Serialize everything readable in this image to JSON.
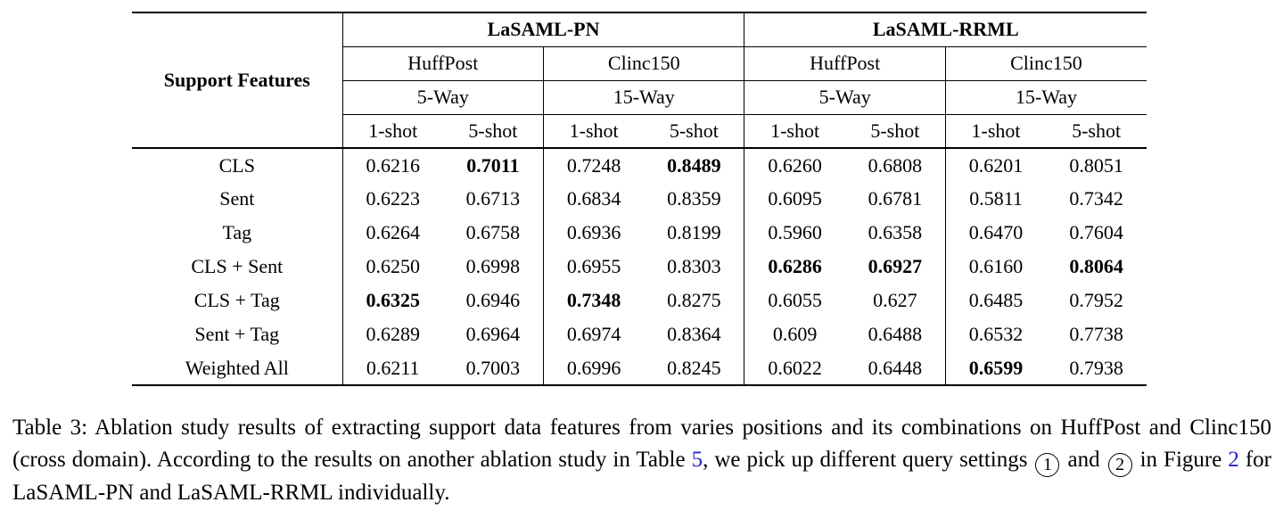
{
  "page": {
    "background": "#ffffff",
    "text_color": "#000000",
    "link_color": "#2222cc"
  },
  "table": {
    "row_header_label": "Support Features",
    "groups": [
      {
        "label": "LaSAML-PN",
        "subgroups": [
          {
            "dataset": "HuffPost",
            "way": "5-Way"
          },
          {
            "dataset": "Clinc150",
            "way": "15-Way"
          }
        ]
      },
      {
        "label": "LaSAML-RRML",
        "subgroups": [
          {
            "dataset": "HuffPost",
            "way": "5-Way"
          },
          {
            "dataset": "Clinc150",
            "way": "15-Way"
          }
        ]
      }
    ],
    "shot_labels": [
      "1-shot",
      "5-shot"
    ],
    "rows": [
      {
        "feature": "CLS",
        "values": [
          "0.6216",
          "0.7011",
          "0.7248",
          "0.8489",
          "0.6260",
          "0.6808",
          "0.6201",
          "0.8051"
        ],
        "bold": [
          false,
          true,
          false,
          true,
          false,
          false,
          false,
          false
        ]
      },
      {
        "feature": "Sent",
        "values": [
          "0.6223",
          "0.6713",
          "0.6834",
          "0.8359",
          "0.6095",
          "0.6781",
          "0.5811",
          "0.7342"
        ],
        "bold": [
          false,
          false,
          false,
          false,
          false,
          false,
          false,
          false
        ]
      },
      {
        "feature": "Tag",
        "values": [
          "0.6264",
          "0.6758",
          "0.6936",
          "0.8199",
          "0.5960",
          "0.6358",
          "0.6470",
          "0.7604"
        ],
        "bold": [
          false,
          false,
          false,
          false,
          false,
          false,
          false,
          false
        ]
      },
      {
        "feature": "CLS + Sent",
        "values": [
          "0.6250",
          "0.6998",
          "0.6955",
          "0.8303",
          "0.6286",
          "0.6927",
          "0.6160",
          "0.8064"
        ],
        "bold": [
          false,
          false,
          false,
          false,
          true,
          true,
          false,
          true
        ]
      },
      {
        "feature": "CLS + Tag",
        "values": [
          "0.6325",
          "0.6946",
          "0.7348",
          "0.8275",
          "0.6055",
          "0.627",
          "0.6485",
          "0.7952"
        ],
        "bold": [
          true,
          false,
          true,
          false,
          false,
          false,
          false,
          false
        ]
      },
      {
        "feature": "Sent + Tag",
        "values": [
          "0.6289",
          "0.6964",
          "0.6974",
          "0.8364",
          "0.609",
          "0.6488",
          "0.6532",
          "0.7738"
        ],
        "bold": [
          false,
          false,
          false,
          false,
          false,
          false,
          false,
          false
        ]
      },
      {
        "feature": "Weighted All",
        "values": [
          "0.6211",
          "0.7003",
          "0.6996",
          "0.8245",
          "0.6022",
          "0.6448",
          "0.6599",
          "0.7938"
        ],
        "bold": [
          false,
          false,
          false,
          false,
          false,
          false,
          true,
          false
        ]
      }
    ]
  },
  "caption": {
    "segments": [
      {
        "style": "normal",
        "text": "Table 3: Ablation study results of extracting support data features from varies positions and its combinations on HuffPost and Clinc150 (cross domain). According to the results on another ablation study in Table "
      },
      {
        "style": "link",
        "text": "5"
      },
      {
        "style": "normal",
        "text": ", we pick up different query settings "
      },
      {
        "style": "circled",
        "text": "1"
      },
      {
        "style": "normal",
        "text": " and "
      },
      {
        "style": "circled",
        "text": "2"
      },
      {
        "style": "normal",
        "text": " in Figure "
      },
      {
        "style": "link",
        "text": "2"
      },
      {
        "style": "normal",
        "text": " for LaSAML-PN and LaSAML-RRML individually."
      }
    ]
  }
}
